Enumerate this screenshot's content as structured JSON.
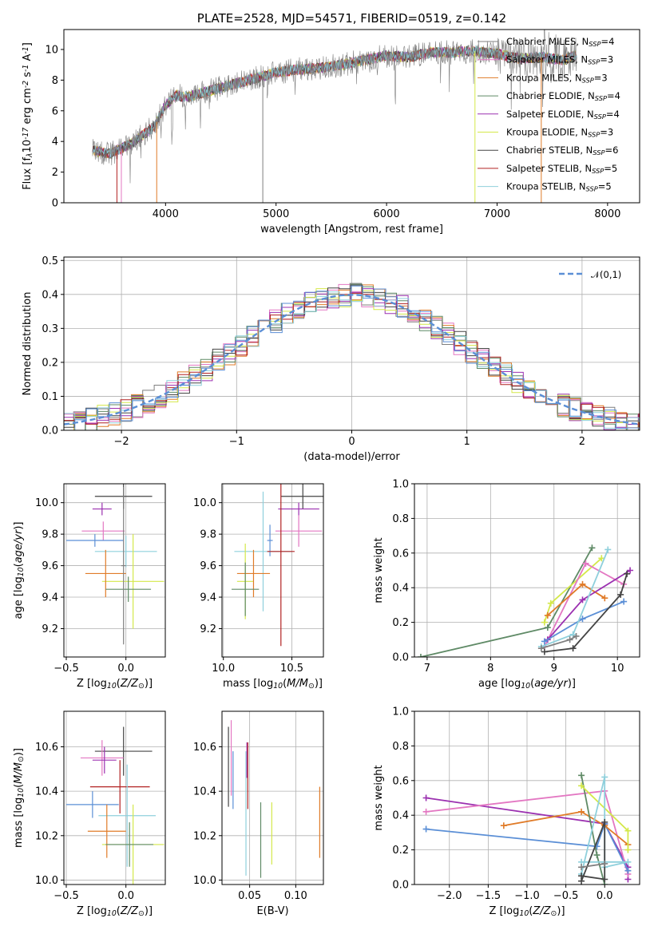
{
  "chart_data": [
    {
      "id": "spectrum",
      "type": "line",
      "title": "PLATE=2528, MJD=54571, FIBERID=0519, z=0.142",
      "xlabel": "wavelength [Angstrom, rest frame]",
      "ylabel": "Flux [f$_\\lambda$10$^{-17}$ erg cm$^{-2}$ s$^{-1}$ A$^{-1}$]",
      "xlim": [
        3080,
        8290
      ],
      "ylim": [
        0,
        11.3
      ],
      "xticks": [
        "4000",
        "5000",
        "6000",
        "7000",
        "8000"
      ],
      "yticks": [
        "0",
        "2",
        "4",
        "6",
        "8",
        "10"
      ],
      "legend_position": "upper-right",
      "series": [
        {
          "name": "Chabrier MILES, N$_{SSP}$=4",
          "color": "#7f7f7f"
        },
        {
          "name": "Salpeter MILES, N$_{SSP}$=3",
          "color": "#e377c2"
        },
        {
          "name": "Kroupa MILES, N$_{SSP}$=3",
          "color": "#e07b28"
        },
        {
          "name": "Chabrier ELODIE, N$_{SSP}$=4",
          "color": "#5f8a66"
        },
        {
          "name": "Salpeter ELODIE, N$_{SSP}$=4",
          "color": "#9b30b0"
        },
        {
          "name": "Kroupa ELODIE, N$_{SSP}$=3",
          "color": "#d4e84a"
        },
        {
          "name": "Chabrier STELIB, N$_{SSP}$=6",
          "color": "#444444"
        },
        {
          "name": "Salpeter STELIB, N$_{SSP}$=5",
          "color": "#b22222"
        },
        {
          "name": "Kroupa STELIB, N$_{SSP}$=5",
          "color": "#8fd0dc"
        }
      ],
      "data_model": {
        "x": [
          3340,
          3500,
          3700,
          3900,
          4000,
          4100,
          4200,
          4400,
          4600,
          4800,
          5000,
          5200,
          5400,
          5600,
          5800,
          6000,
          6200,
          6400,
          6600,
          6800,
          7000,
          7200,
          7400,
          7600,
          7700
        ],
        "y": [
          3.4,
          3.2,
          3.9,
          5.0,
          6.4,
          7.0,
          6.9,
          7.3,
          7.7,
          8.1,
          8.5,
          8.7,
          8.8,
          9.0,
          9.3,
          9.6,
          9.5,
          9.8,
          9.8,
          9.9,
          9.7,
          9.4,
          9.5,
          9.3,
          9.6
        ]
      }
    },
    {
      "id": "residuals",
      "type": "line",
      "xlabel": "(data-model)/error",
      "ylabel": "Normed distribution",
      "xlim": [
        -2.5,
        2.5
      ],
      "ylim": [
        0,
        0.51
      ],
      "xticks": [
        "−2",
        "−1",
        "0",
        "1",
        "2"
      ],
      "yticks": [
        "0.0",
        "0.1",
        "0.2",
        "0.3",
        "0.4",
        "0.5"
      ],
      "legend": "$\\mathcal{N}(0,1)$",
      "legend_position": "upper-right",
      "gaussian": {
        "mu": 0,
        "sigma": 1,
        "color": "#5b8fd6"
      }
    },
    {
      "id": "age-vs-Z",
      "type": "scatter",
      "xlabel": "Z [log$_{10}$($Z/Z_\\odot$)]",
      "ylabel": "age  [log$_{10}$($age/yr$)]",
      "xlim": [
        -0.52,
        0.33
      ],
      "ylim": [
        9.02,
        10.12
      ],
      "xticks": [
        "−0.5",
        "0.0"
      ],
      "yticks": [
        "9.2",
        "9.4",
        "9.6",
        "9.8",
        "10.0"
      ],
      "points": [
        {
          "x": -0.02,
          "xerr": 0.24,
          "y": 10.04,
          "yerr": 0.08,
          "color": "#444444"
        },
        {
          "x": -0.2,
          "xerr": 0.08,
          "y": 9.96,
          "yerr": 0.04,
          "color": "#9b30b0"
        },
        {
          "x": -0.19,
          "xerr": 0.18,
          "y": 9.82,
          "yerr": 0.06,
          "color": "#e377c2"
        },
        {
          "x": -0.26,
          "xerr": 0.24,
          "y": 9.76,
          "yerr": 0.04,
          "color": "#5b8fd6"
        },
        {
          "x": 0.0,
          "xerr": 0.26,
          "y": 9.69,
          "yerr": 0.1,
          "color": "#8fd0dc"
        },
        {
          "x": 0.06,
          "xerr": 0.26,
          "y": 9.5,
          "yerr": 0.3,
          "color": "#d4e84a"
        },
        {
          "x": -0.17,
          "xerr": 0.17,
          "y": 9.55,
          "yerr": 0.15,
          "color": "#e07b28"
        },
        {
          "x": 0.02,
          "xerr": 0.19,
          "y": 9.45,
          "yerr": 0.08,
          "color": "#5f8a66"
        },
        {
          "x": -0.02,
          "xerr": 0.02,
          "y": 9.6,
          "yerr": 0.5,
          "color": "#7f7f7f"
        }
      ]
    },
    {
      "id": "age-vs-mass",
      "type": "scatter",
      "xlabel": "mass [log$_{10}$($M/M_\\odot$)]",
      "ylabel": "",
      "xlim": [
        9.99,
        10.73
      ],
      "ylim": [
        9.02,
        10.12
      ],
      "xticks": [
        "10.0",
        "10.5"
      ],
      "yticks": [
        "9.2",
        "9.4",
        "9.6",
        "9.8",
        "10.0"
      ],
      "points": [
        {
          "x": 10.58,
          "xerr": 0.16,
          "y": 10.04,
          "yerr": 0.08,
          "color": "#444444"
        },
        {
          "x": 10.55,
          "xerr": 0.15,
          "y": 9.96,
          "yerr": 0.04,
          "color": "#9b30b0"
        },
        {
          "x": 10.55,
          "xerr": 0.17,
          "y": 9.82,
          "yerr": 0.1,
          "color": "#e377c2"
        },
        {
          "x": 10.34,
          "xerr": 0.02,
          "y": 9.76,
          "yerr": 0.1,
          "color": "#5b8fd6"
        },
        {
          "x": 10.29,
          "xerr": 0.21,
          "y": 9.69,
          "yerr": 0.38,
          "color": "#8fd0dc"
        },
        {
          "x": 10.16,
          "xerr": 0.06,
          "y": 9.5,
          "yerr": 0.24,
          "color": "#d4e84a"
        },
        {
          "x": 10.22,
          "xerr": 0.12,
          "y": 9.55,
          "yerr": 0.15,
          "color": "#e07b28"
        },
        {
          "x": 10.16,
          "xerr": 0.1,
          "y": 9.45,
          "yerr": 0.17,
          "color": "#5f8a66"
        },
        {
          "x": 10.42,
          "xerr": 0.1,
          "y": 9.69,
          "yerr": 0.6,
          "color": "#b22222"
        }
      ]
    },
    {
      "id": "weight-vs-age",
      "type": "line",
      "xlabel": "age  [log$_{10}$($age/yr$)]",
      "ylabel": "mass weight",
      "xlim": [
        6.8,
        10.35
      ],
      "ylim": [
        0,
        1.0
      ],
      "xticks": [
        "7",
        "8",
        "9",
        "10"
      ],
      "yticks": [
        "0.0",
        "0.2",
        "0.4",
        "0.6",
        "0.8",
        "1.0"
      ],
      "series": [
        {
          "color": "#5f8a66",
          "x": [
            6.9,
            8.9,
            9.6
          ],
          "y": [
            0.0,
            0.17,
            0.63
          ]
        },
        {
          "color": "#d4e84a",
          "x": [
            8.85,
            8.95,
            9.75
          ],
          "y": [
            0.2,
            0.31,
            0.57
          ]
        },
        {
          "color": "#e377c2",
          "x": [
            8.85,
            9.5,
            10.1
          ],
          "y": [
            0.06,
            0.54,
            0.42
          ]
        },
        {
          "color": "#e07b28",
          "x": [
            8.9,
            9.45,
            9.8
          ],
          "y": [
            0.24,
            0.42,
            0.34
          ]
        },
        {
          "color": "#9b30b0",
          "x": [
            8.9,
            9.45,
            10.2
          ],
          "y": [
            0.1,
            0.33,
            0.5
          ]
        },
        {
          "color": "#5b8fd6",
          "x": [
            8.85,
            9.45,
            10.1
          ],
          "y": [
            0.09,
            0.22,
            0.32
          ]
        },
        {
          "color": "#444444",
          "x": [
            8.85,
            9.3,
            10.05,
            10.15
          ],
          "y": [
            0.03,
            0.05,
            0.36,
            0.48
          ]
        },
        {
          "color": "#8fd0dc",
          "x": [
            8.8,
            9.3,
            9.85
          ],
          "y": [
            0.06,
            0.13,
            0.62
          ]
        },
        {
          "color": "#7f7f7f",
          "x": [
            8.8,
            9.25,
            9.35
          ],
          "y": [
            0.05,
            0.1,
            0.12
          ]
        }
      ]
    },
    {
      "id": "mass-vs-Z",
      "type": "scatter",
      "xlabel": "Z [log$_{10}$($Z/Z_\\odot$)]",
      "ylabel": "mass [log$_{10}$($M/M_\\odot$)]",
      "xlim": [
        -0.52,
        0.33
      ],
      "ylim": [
        9.98,
        10.76
      ],
      "xticks": [
        "−0.5",
        "0.0"
      ],
      "yticks": [
        "10.0",
        "10.2",
        "10.4",
        "10.6"
      ],
      "points": [
        {
          "x": -0.02,
          "xerr": 0.24,
          "y": 10.58,
          "yerr": 0.11,
          "color": "#444444"
        },
        {
          "x": -0.2,
          "xerr": 0.18,
          "y": 10.55,
          "yerr": 0.08,
          "color": "#e377c2"
        },
        {
          "x": -0.18,
          "xerr": 0.1,
          "y": 10.54,
          "yerr": 0.06,
          "color": "#9b30b0"
        },
        {
          "x": -0.05,
          "xerr": 0.25,
          "y": 10.42,
          "yerr": 0.12,
          "color": "#b22222"
        },
        {
          "x": -0.28,
          "xerr": 0.22,
          "y": 10.34,
          "yerr": 0.06,
          "color": "#5b8fd6"
        },
        {
          "x": 0.01,
          "xerr": 0.24,
          "y": 10.29,
          "yerr": 0.23,
          "color": "#8fd0dc"
        },
        {
          "x": -0.16,
          "xerr": 0.16,
          "y": 10.22,
          "yerr": 0.12,
          "color": "#e07b28"
        },
        {
          "x": 0.06,
          "xerr": 0.26,
          "y": 10.16,
          "yerr": 0.18,
          "color": "#d4e84a"
        },
        {
          "x": 0.03,
          "xerr": 0.2,
          "y": 10.16,
          "yerr": 0.1,
          "color": "#5f8a66"
        }
      ]
    },
    {
      "id": "mass-vs-EBV",
      "type": "scatter",
      "xlabel": "E(B-V)",
      "ylabel": "",
      "xlim": [
        0.02,
        0.13
      ],
      "ylim": [
        9.98,
        10.76
      ],
      "xticks": [
        "0.05",
        "0.10"
      ],
      "yticks": [
        "10.0",
        "10.2",
        "10.4",
        "10.6"
      ],
      "points": [
        {
          "x": 0.027,
          "y": 10.51,
          "yerr": 0.18,
          "color": "#444444"
        },
        {
          "x": 0.03,
          "y": 10.55,
          "yerr": 0.17,
          "color": "#e377c2"
        },
        {
          "x": 0.032,
          "y": 10.45,
          "yerr": 0.13,
          "color": "#5b8fd6"
        },
        {
          "x": 0.046,
          "y": 10.3,
          "yerr": 0.28,
          "color": "#8fd0dc"
        },
        {
          "x": 0.047,
          "y": 10.54,
          "yerr": 0.08,
          "color": "#9b30b0"
        },
        {
          "x": 0.048,
          "y": 10.47,
          "yerr": 0.15,
          "color": "#b22222"
        },
        {
          "x": 0.062,
          "y": 10.18,
          "yerr": 0.17,
          "color": "#5f8a66"
        },
        {
          "x": 0.074,
          "y": 10.21,
          "yerr": 0.14,
          "color": "#d4e84a"
        },
        {
          "x": 0.126,
          "y": 10.26,
          "yerr": 0.16,
          "color": "#e07b28"
        }
      ]
    },
    {
      "id": "weight-vs-Z",
      "type": "line",
      "xlabel": "Z [log$_{10}$($Z/Z_\\odot$)]",
      "ylabel": "mass weight",
      "xlim": [
        -2.45,
        0.45
      ],
      "ylim": [
        0,
        1.0
      ],
      "xticks": [
        "−2.0",
        "−1.5",
        "−1.0",
        "−0.5",
        "0.0"
      ],
      "yticks": [
        "0.0",
        "0.2",
        "0.4",
        "0.6",
        "0.8",
        "1.0"
      ],
      "series": [
        {
          "color": "#9b30b0",
          "x": [
            -2.3,
            0.0,
            0.3,
            0.3
          ],
          "y": [
            0.5,
            0.35,
            0.1,
            0.03
          ]
        },
        {
          "color": "#e377c2",
          "x": [
            -2.3,
            0.0,
            0.3
          ],
          "y": [
            0.42,
            0.54,
            0.06
          ]
        },
        {
          "color": "#5b8fd6",
          "x": [
            -2.3,
            -0.1,
            0.0,
            0.3
          ],
          "y": [
            0.32,
            0.22,
            0.35,
            0.08
          ]
        },
        {
          "color": "#e07b28",
          "x": [
            -1.3,
            -0.3,
            0.0,
            0.3
          ],
          "y": [
            0.34,
            0.42,
            0.34,
            0.23
          ]
        },
        {
          "color": "#5f8a66",
          "x": [
            -0.3,
            -0.1,
            0.0
          ],
          "y": [
            0.63,
            0.17,
            0.0
          ]
        },
        {
          "color": "#d4e84a",
          "x": [
            -0.3,
            0.3,
            0.3
          ],
          "y": [
            0.57,
            0.31,
            0.2
          ]
        },
        {
          "color": "#8fd0dc",
          "x": [
            -0.3,
            0.0,
            0.0,
            0.3,
            -0.3
          ],
          "y": [
            0.06,
            0.62,
            0.1,
            0.13,
            0.13
          ]
        },
        {
          "color": "#444444",
          "x": [
            -0.3,
            0.0,
            0.0,
            -0.3
          ],
          "y": [
            0.05,
            0.03,
            0.36,
            0.02
          ]
        },
        {
          "color": "#7f7f7f",
          "x": [
            -0.3,
            0.0
          ],
          "y": [
            0.1,
            0.12
          ]
        }
      ]
    }
  ]
}
